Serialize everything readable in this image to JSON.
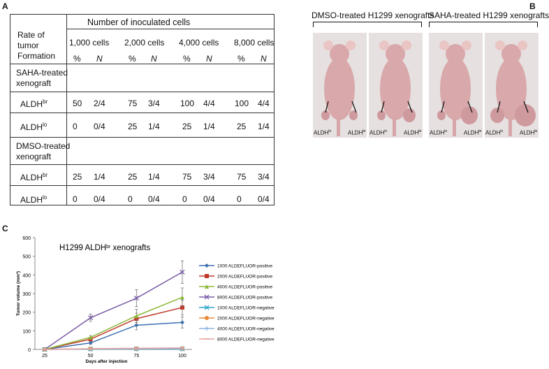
{
  "panels": {
    "a": "A",
    "b": "B",
    "c": "C"
  },
  "table": {
    "header_main": "Number of inoculated cells",
    "rate_label": [
      "Rate of",
      "tumor",
      "Formation"
    ],
    "cell_counts": [
      "1,000 cells",
      "2,000 cells",
      "4,000 cells",
      "8,000 cells"
    ],
    "pct_label": "%",
    "n_label": "N",
    "groups": [
      {
        "title": [
          "SAHA-treated",
          "xenograft"
        ],
        "rows": [
          {
            "label": "ALDH",
            "sup": "br",
            "values": [
              "50",
              "2/4",
              "75",
              "3/4",
              "100",
              "4/4",
              "100",
              "4/4"
            ]
          },
          {
            "label": "ALDH",
            "sup": "lo",
            "values": [
              "0",
              "0/4",
              "25",
              "1/4",
              "25",
              "1/4",
              "25",
              "1/4"
            ]
          }
        ]
      },
      {
        "title": [
          "DMSO-treated",
          "xenograft"
        ],
        "rows": [
          {
            "label": "ALDH",
            "sup": "br",
            "values": [
              "25",
              "1/4",
              "25",
              "1/4",
              "75",
              "3/4",
              "75",
              "3/4"
            ]
          },
          {
            "label": "ALDH",
            "sup": "lo",
            "values": [
              "0",
              "0/4",
              "0",
              "0/4",
              "0",
              "0/4",
              "0",
              "0/4"
            ]
          }
        ]
      }
    ]
  },
  "photos": {
    "dmso_title": "DMSO-treated H1299 xenografts",
    "saha_title": "SAHA-treated H1299 xenografts",
    "left_label": "ALDH",
    "left_sup": "lo",
    "right_label": "ALDH",
    "right_sup": "br",
    "colors": {
      "skin": "#d9a8aa",
      "background": "#e6e0e0"
    }
  },
  "chart_data": {
    "type": "line",
    "title": "H1299 ALDH",
    "title_sup": "br",
    "title_suffix": " xenografts",
    "xlabel": "Days after injection",
    "ylabel": "Tumor volume (mm³)",
    "x": [
      25,
      50,
      75,
      100
    ],
    "xlim": [
      25,
      100
    ],
    "ylim": [
      0,
      600
    ],
    "yticks": [
      0,
      100,
      200,
      300,
      400,
      500,
      600
    ],
    "legend_position": "right",
    "series": [
      {
        "name": "1000 ALDEFLUOR-positive",
        "values": [
          0,
          35,
          130,
          145
        ],
        "err": [
          0,
          8,
          25,
          30
        ],
        "color": "#3c6fb0",
        "marker": "diamond"
      },
      {
        "name": "2000 ALDEFLUOR-positive",
        "values": [
          0,
          55,
          165,
          225
        ],
        "err": [
          0,
          10,
          30,
          40
        ],
        "color": "#c0392b",
        "marker": "square"
      },
      {
        "name": "4000 ALDEFLUOR-positive",
        "values": [
          0,
          65,
          180,
          280
        ],
        "err": [
          0,
          10,
          35,
          50
        ],
        "color": "#8db83a",
        "marker": "triangle"
      },
      {
        "name": "8000 ALDEFLUOR-positive",
        "values": [
          0,
          170,
          275,
          415
        ],
        "err": [
          0,
          20,
          45,
          60
        ],
        "color": "#7b5fa8",
        "marker": "x"
      },
      {
        "name": "1000 ALDEFLUOR-negative",
        "values": [
          0,
          2,
          3,
          3
        ],
        "err": [
          0,
          0,
          0,
          0
        ],
        "color": "#2aa7c9",
        "marker": "x"
      },
      {
        "name": "2000 ALDEFLUOR-negative",
        "values": [
          0,
          4,
          5,
          6
        ],
        "err": [
          0,
          0,
          0,
          0
        ],
        "color": "#e98a3a",
        "marker": "circle"
      },
      {
        "name": "4000 ALDEFLUOR-negative",
        "values": [
          0,
          3,
          4,
          5
        ],
        "err": [
          0,
          0,
          0,
          0
        ],
        "color": "#8fb4de",
        "marker": "plus"
      },
      {
        "name": "8000 ALDEFLUOR-negative",
        "values": [
          0,
          4,
          6,
          8
        ],
        "err": [
          0,
          0,
          0,
          0
        ],
        "color": "#e8a2a0",
        "marker": "line"
      }
    ]
  }
}
